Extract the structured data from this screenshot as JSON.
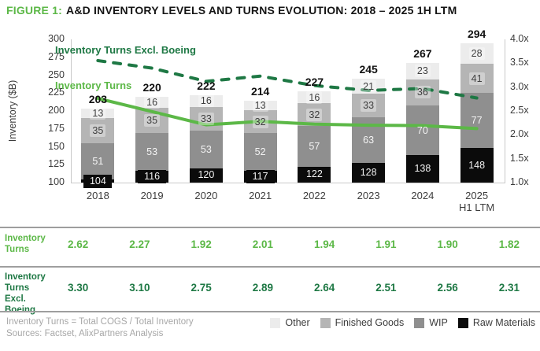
{
  "title": {
    "prefix": "FIGURE 1:",
    "text": "A&D INVENTORY LEVELS AND TURNS EVOLUTION: 2018 – 2025 1H LTM"
  },
  "colors": {
    "green_bright": "#5CB847",
    "green_dark": "#1E7844",
    "other": "#ECECEC",
    "finished_goods": "#B5B5B5",
    "wip": "#8F8F8F",
    "raw_materials": "#0B0B0B",
    "axis_line": "#C9C9C9",
    "footnote_gray": "#A7A7A7"
  },
  "chart_data": {
    "type": "bar",
    "subtype": "stacked-bars-with-line-overlay",
    "categories": [
      {
        "label": "2018"
      },
      {
        "label": "2019"
      },
      {
        "label": "2020"
      },
      {
        "label": "2021"
      },
      {
        "label": "2022"
      },
      {
        "label": "2023"
      },
      {
        "label": "2024"
      },
      {
        "label": "2025",
        "sub": "H1 LTM"
      }
    ],
    "stacks": [
      {
        "name": "Raw Materials",
        "color_key": "raw_materials",
        "values": [
          104,
          116,
          120,
          117,
          122,
          128,
          138,
          148
        ]
      },
      {
        "name": "WIP",
        "color_key": "wip",
        "values": [
          51,
          53,
          53,
          52,
          57,
          63,
          70,
          77
        ]
      },
      {
        "name": "Finished Goods",
        "color_key": "finished_goods",
        "values": [
          35,
          35,
          33,
          32,
          32,
          33,
          36,
          41
        ]
      },
      {
        "name": "Other",
        "color_key": "other",
        "values": [
          13,
          16,
          16,
          13,
          16,
          21,
          23,
          28
        ]
      }
    ],
    "totals": [
      203,
      220,
      222,
      214,
      227,
      245,
      267,
      294
    ],
    "lines": [
      {
        "name": "Inventory Turns",
        "style": "solid",
        "color_key": "green_bright",
        "values": [
          2.62,
          2.27,
          1.92,
          2.01,
          1.94,
          1.91,
          1.9,
          1.82
        ]
      },
      {
        "name": "Inventory Turns Excl. Boeing",
        "style": "dashed",
        "color_key": "green_dark",
        "values": [
          3.3,
          3.1,
          2.75,
          2.89,
          2.64,
          2.51,
          2.56,
          2.31
        ]
      }
    ],
    "left_axis": {
      "label": "Inventory ($B)",
      "min": 100,
      "max": 300,
      "step": 25
    },
    "right_axis": {
      "min": 1.0,
      "max": 4.0,
      "step": 0.5,
      "suffix": "x"
    },
    "grid": "off",
    "legend_position": "bottom-right"
  },
  "table": {
    "rows": [
      {
        "label": "Inventory Turns",
        "color_key": "green_bright",
        "values": [
          "2.62",
          "2.27",
          "1.92",
          "2.01",
          "1.94",
          "1.91",
          "1.90",
          "1.82"
        ]
      },
      {
        "label": "Inventory Turns Excl. Boeing",
        "color_key": "green_dark",
        "values": [
          "3.30",
          "3.10",
          "2.75",
          "2.89",
          "2.64",
          "2.51",
          "2.56",
          "2.31"
        ]
      }
    ]
  },
  "legend": [
    {
      "label": "Other",
      "color_key": "other"
    },
    {
      "label": "Finished Goods",
      "color_key": "finished_goods"
    },
    {
      "label": "WIP",
      "color_key": "wip"
    },
    {
      "label": "Raw Materials",
      "color_key": "raw_materials"
    }
  ],
  "footnotes": [
    "Inventory Turns = Total COGS / Total Inventory",
    "Sources: Factset, AlixPartners Analysis"
  ]
}
